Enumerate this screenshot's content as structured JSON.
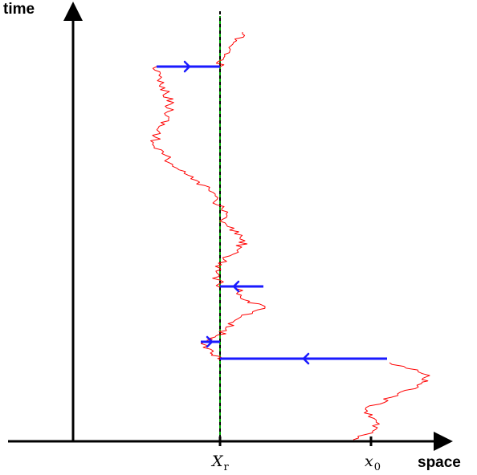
{
  "labels": {
    "y_axis": "time",
    "x_axis": "space",
    "reset_point_main": "X",
    "reset_point_sub": "r",
    "start_point_main": "x",
    "start_point_sub": "0"
  },
  "colors": {
    "axes": "#000000",
    "trajectory": "#ff0000",
    "reset_jump": "#1a1aff",
    "reset_line_dash": "#000000",
    "reset_line_solid": "#00aa00"
  },
  "reset_jumps": [
    {
      "direction": "left"
    },
    {
      "direction": "right"
    },
    {
      "direction": "left"
    },
    {
      "direction": "right"
    }
  ]
}
